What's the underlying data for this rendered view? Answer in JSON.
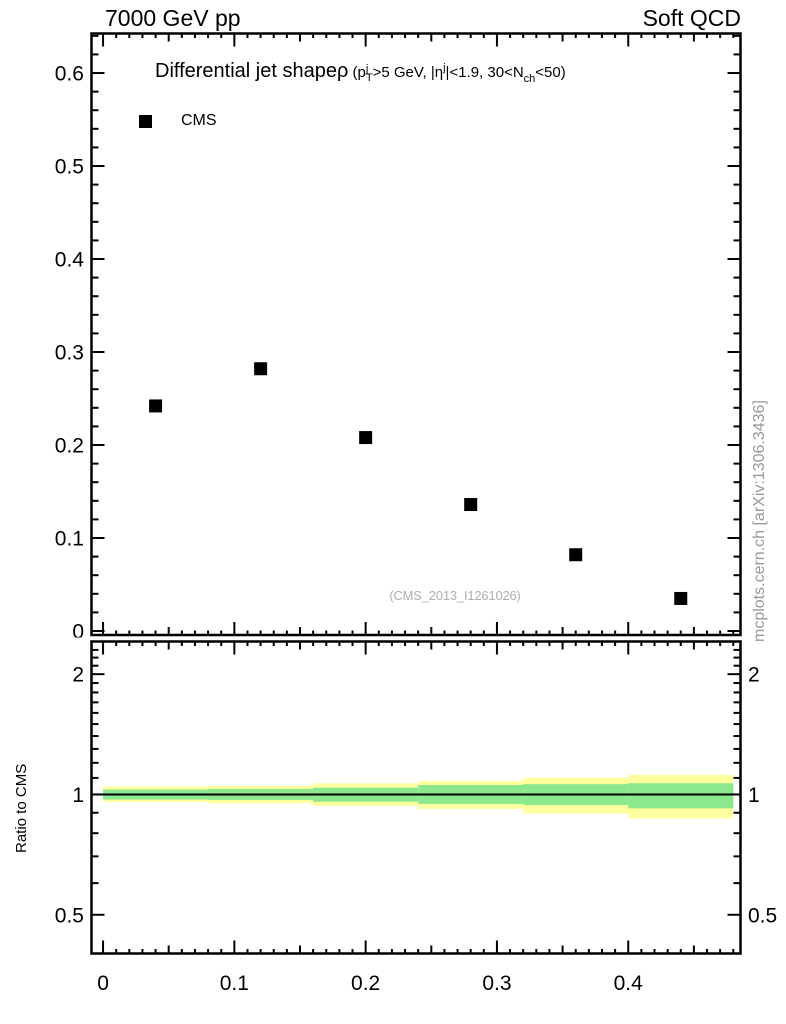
{
  "header": {
    "left": "7000 GeV pp",
    "right": "Soft QCD"
  },
  "title": {
    "main": "Differential jet shape",
    "rho": "ρ",
    "cuts": {
      "open": " (p",
      "p_sup": "j",
      "p_sub": "T",
      "seg1": ">5 GeV, |η",
      "eta_sup": "j",
      "seg2": "|<1.9, 30<N",
      "n_sub": "ch",
      "close": "<50)"
    }
  },
  "legend": {
    "cms": "CMS"
  },
  "watermark": "(CMS_2013_I1261026)",
  "side_note": "mcplots.cern.ch [arXiv:1306.3436]",
  "ratio_panel": {
    "ylabel": "Ratio to CMS"
  },
  "colors": {
    "frame": "#000000",
    "marker": "#000000",
    "band_outer": "#ffff9e",
    "band_inner": "#8ce88c",
    "ref_line": "#000000",
    "watermark": "#b0b0b0",
    "side_note": "#999999"
  },
  "chart_data": {
    "type": "scatter",
    "title": "Differential jet shape rho (pT_j>5 GeV, |eta_j|<1.9, 30<Nch<50)",
    "x_axis": {
      "lim": [
        -0.0088,
        0.4855
      ],
      "tick_range": [
        0,
        0.48
      ],
      "minor_step": 0.01,
      "labels": [
        {
          "v": 0,
          "t": "0"
        },
        {
          "v": 0.1,
          "t": "0.1"
        },
        {
          "v": 0.2,
          "t": "0.2"
        },
        {
          "v": 0.3,
          "t": "0.3"
        },
        {
          "v": 0.4,
          "t": "0.4"
        }
      ]
    },
    "main_y_axis": {
      "lim": [
        -0.0043,
        0.6425
      ],
      "minor_step": 0.02,
      "labels": [
        {
          "v": 0,
          "t": "0"
        },
        {
          "v": 0.1,
          "t": "0.1"
        },
        {
          "v": 0.2,
          "t": "0.2"
        },
        {
          "v": 0.3,
          "t": "0.3"
        },
        {
          "v": 0.4,
          "t": "0.4"
        },
        {
          "v": 0.5,
          "t": "0.5"
        },
        {
          "v": 0.6,
          "t": "0.6"
        }
      ]
    },
    "series": [
      {
        "name": "CMS",
        "marker": "filled-square",
        "marker_size": 13,
        "x": [
          0.04,
          0.12,
          0.2,
          0.28,
          0.36,
          0.44
        ],
        "y": [
          0.242,
          0.282,
          0.208,
          0.136,
          0.082,
          0.035
        ]
      }
    ],
    "ratio_y_axis": {
      "scale": "log",
      "lim": [
        0.4,
        2.414
      ],
      "majors": [
        {
          "v": 0.5,
          "t": "0.5"
        },
        {
          "v": 1,
          "t": "1"
        },
        {
          "v": 2,
          "t": "2"
        }
      ],
      "minors": [
        0.6,
        0.7,
        0.8,
        0.9,
        1.1,
        1.2,
        1.3,
        1.4,
        1.5,
        1.6,
        1.7,
        1.8,
        1.9,
        2.1,
        2.2,
        2.3
      ]
    },
    "ratio": {
      "ref_line": 1,
      "bin_edges": [
        0,
        0.08,
        0.16,
        0.24,
        0.32,
        0.4,
        0.48
      ],
      "outer_band": [
        [
          0.958,
          1.047
        ],
        [
          0.951,
          1.05
        ],
        [
          0.936,
          1.066
        ],
        [
          0.92,
          1.08
        ],
        [
          0.897,
          1.102
        ],
        [
          0.872,
          1.119
        ]
      ],
      "inner_band": [
        [
          0.971,
          1.029
        ],
        [
          0.969,
          1.032
        ],
        [
          0.959,
          1.04
        ],
        [
          0.947,
          1.056
        ],
        [
          0.941,
          1.061
        ],
        [
          0.923,
          1.067
        ]
      ]
    }
  }
}
